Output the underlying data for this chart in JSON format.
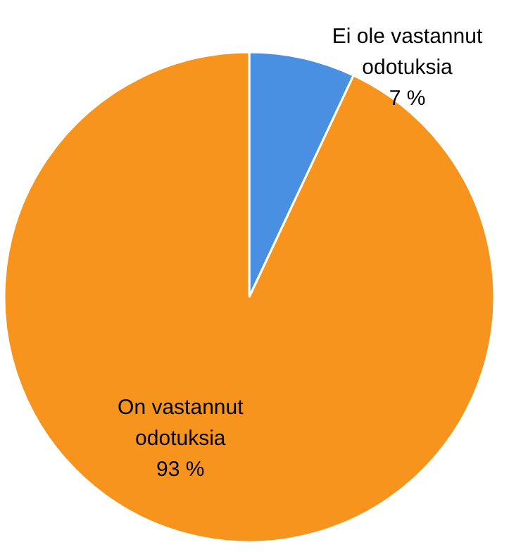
{
  "chart_data": {
    "type": "pie",
    "categories": [
      "Ei ole vastannut odotuksia",
      "On vastannut odotuksia"
    ],
    "values": [
      7,
      93
    ],
    "colors": [
      "#4a90e2",
      "#f7941d"
    ],
    "value_labels": [
      "7 %",
      "93 %"
    ]
  }
}
